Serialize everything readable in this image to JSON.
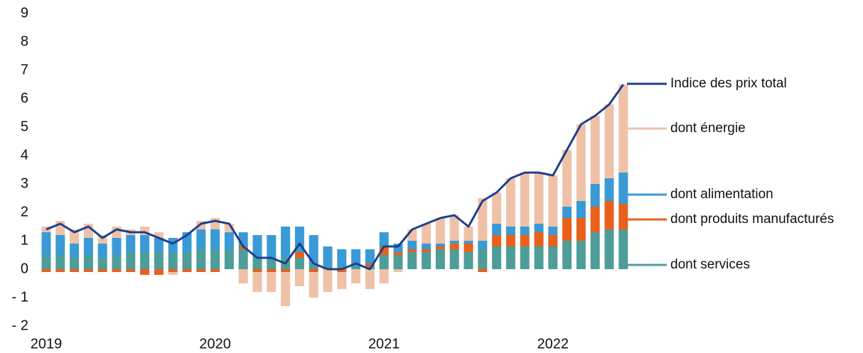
{
  "chart_data": {
    "type": "bar",
    "categories": [
      "2019",
      null,
      null,
      null,
      null,
      null,
      null,
      null,
      null,
      null,
      null,
      null,
      "2020",
      null,
      null,
      null,
      null,
      null,
      null,
      null,
      null,
      null,
      null,
      null,
      "2021",
      null,
      null,
      null,
      null,
      null,
      null,
      null,
      null,
      null,
      null,
      null,
      "2022",
      null,
      null,
      null,
      null,
      null
    ],
    "series": [
      {
        "name": "dont services",
        "color": "#4f9d98",
        "values": [
          0.5,
          0.5,
          0.4,
          0.5,
          0.4,
          0.5,
          0.6,
          0.6,
          0.6,
          0.6,
          0.6,
          0.7,
          0.7,
          0.7,
          0.7,
          0.4,
          0.3,
          0.4,
          0.4,
          0.2,
          0.1,
          0.1,
          0.1,
          0.1,
          0.5,
          0.5,
          0.6,
          0.6,
          0.7,
          0.7,
          0.6,
          0.7,
          0.8,
          0.8,
          0.8,
          0.8,
          0.8,
          1.0,
          1.0,
          1.3,
          1.4,
          1.4
        ]
      },
      {
        "name": "dont produits manufacturés",
        "color": "#e8601c",
        "values": [
          -0.1,
          -0.1,
          -0.1,
          -0.1,
          -0.1,
          -0.1,
          -0.1,
          -0.2,
          -0.2,
          -0.1,
          -0.1,
          -0.1,
          -0.1,
          0,
          0.1,
          -0.1,
          -0.1,
          -0.1,
          0.2,
          -0.1,
          0,
          -0.1,
          0,
          0.1,
          0.3,
          0.1,
          0.1,
          0.1,
          0.1,
          0.2,
          0.3,
          -0.1,
          0.4,
          0.4,
          0.4,
          0.5,
          0.4,
          0.8,
          0.8,
          0.9,
          1.0,
          0.9
        ]
      },
      {
        "name": "dont alimentation",
        "color": "#3a9ad6",
        "values": [
          0.8,
          0.7,
          0.5,
          0.6,
          0.5,
          0.6,
          0.6,
          0.6,
          0.5,
          0.5,
          0.7,
          0.7,
          0.7,
          0.6,
          0.5,
          0.8,
          0.9,
          1.1,
          0.9,
          1.0,
          0.7,
          0.6,
          0.6,
          0.5,
          0.5,
          0.3,
          0.3,
          0.2,
          0.1,
          0.1,
          0.1,
          0.3,
          0.4,
          0.3,
          0.3,
          0.3,
          0.3,
          0.4,
          0.6,
          0.8,
          0.8,
          1.1
        ]
      },
      {
        "name": "dont énergie",
        "color": "#efc2a8",
        "values": [
          0.2,
          0.5,
          0.5,
          0.5,
          0.3,
          0.4,
          0.2,
          0.3,
          0.2,
          -0.1,
          0,
          0.3,
          0.4,
          0.3,
          -0.5,
          -0.7,
          -0.7,
          -1.2,
          -0.6,
          -0.9,
          -0.8,
          -0.6,
          -0.5,
          -0.7,
          -0.5,
          -0.1,
          0.4,
          0.7,
          0.9,
          0.9,
          0.5,
          1.5,
          1.1,
          1.7,
          1.9,
          1.8,
          1.8,
          2.0,
          2.7,
          2.4,
          2.6,
          3.1
        ]
      },
      {
        "name": "Indice des prix total",
        "type": "line",
        "color": "#1f3f8c",
        "values": [
          1.4,
          1.6,
          1.3,
          1.5,
          1.1,
          1.4,
          1.3,
          1.3,
          1.1,
          0.9,
          1.2,
          1.6,
          1.7,
          1.6,
          0.8,
          0.4,
          0.4,
          0.2,
          0.9,
          0.2,
          0.0,
          0.0,
          0.2,
          0.0,
          0.8,
          0.8,
          1.4,
          1.6,
          1.8,
          1.9,
          1.5,
          2.4,
          2.7,
          3.2,
          3.4,
          3.4,
          3.3,
          4.2,
          5.1,
          5.4,
          5.8,
          6.5
        ]
      }
    ],
    "ylim": [
      -2,
      9
    ],
    "yticks": [
      {
        "value": -2,
        "label": "- 2"
      },
      {
        "value": -1,
        "label": "- 1"
      },
      0,
      1,
      2,
      3,
      4,
      5,
      6,
      7,
      8,
      9
    ],
    "grid": false
  }
}
